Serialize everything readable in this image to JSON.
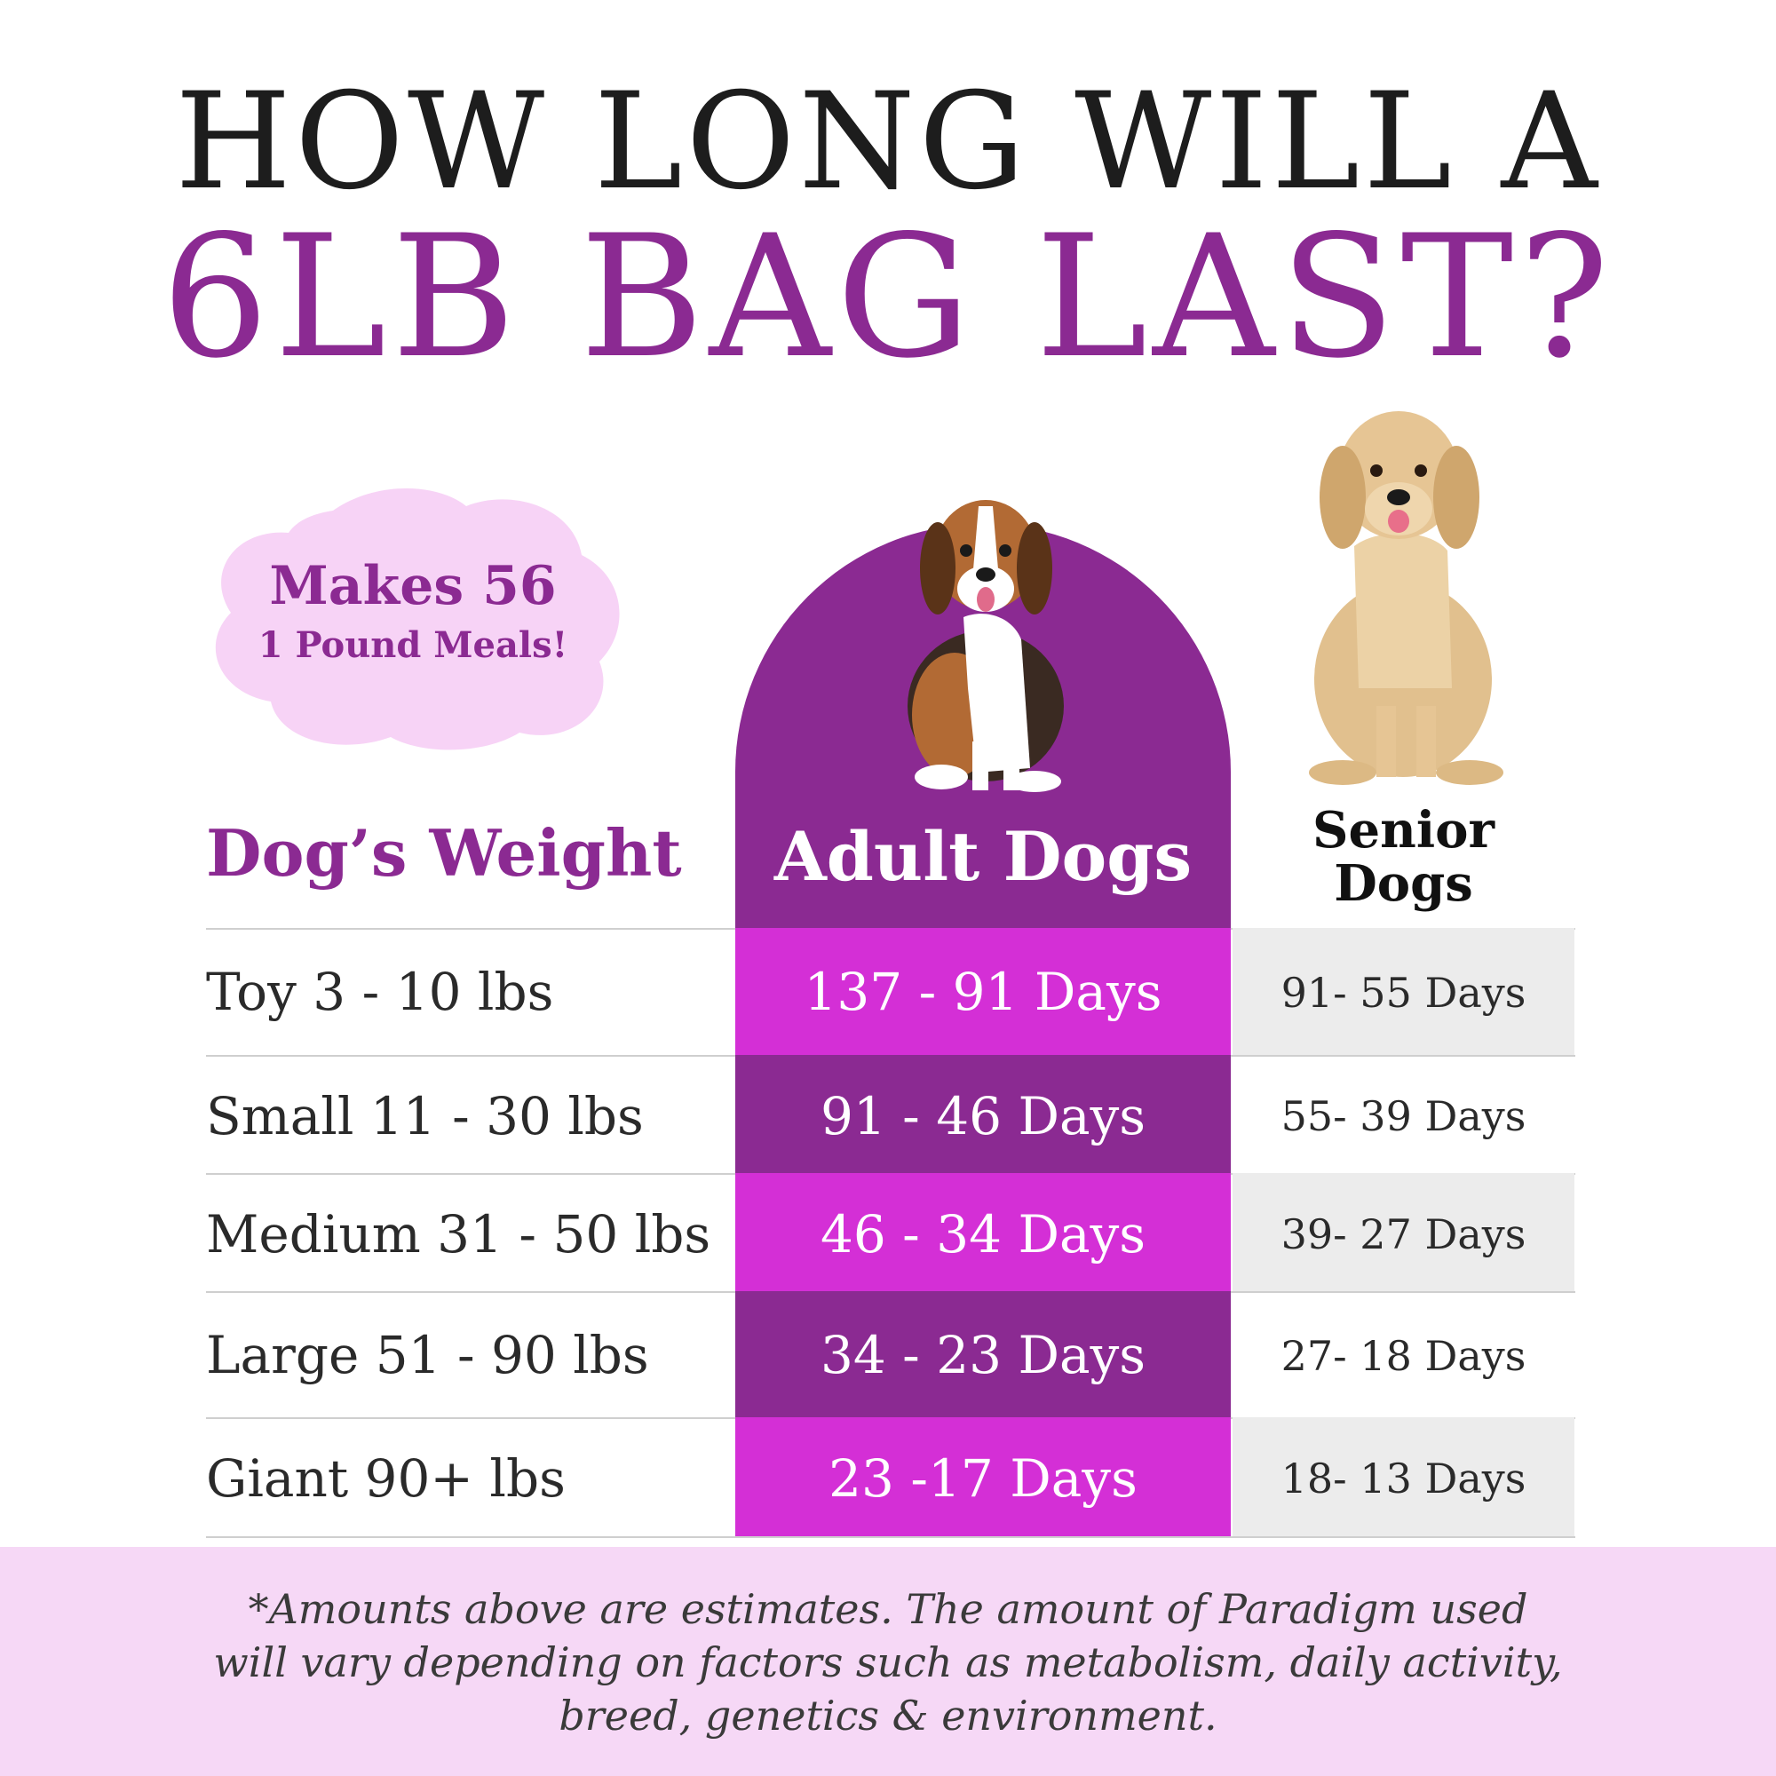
{
  "title": {
    "line1": "HOW LONG WILL A",
    "line2": "6LB BAG LAST?"
  },
  "badge": {
    "line1": "Makes 56",
    "line2": "1 Pound Meals!"
  },
  "headers": {
    "weight": "Dog’s Weight",
    "adult": "Adult Dogs",
    "senior_line1": "Senior",
    "senior_line2": "Dogs"
  },
  "rows": [
    {
      "weight": "Toy 3 - 10 lbs",
      "adult": "137 - 91 Days",
      "senior": "91- 55 Days"
    },
    {
      "weight": "Small 11 - 30 lbs",
      "adult": "91 - 46 Days",
      "senior": "55- 39 Days"
    },
    {
      "weight": "Medium 31 - 50 lbs",
      "adult": "46 - 34 Days",
      "senior": "39- 27 Days"
    },
    {
      "weight": "Large 51 - 90 lbs",
      "adult": "34 - 23 Days",
      "senior": "27- 18 Days"
    },
    {
      "weight": "Giant 90+ lbs",
      "adult": "23 -17 Days",
      "senior": "18- 13 Days"
    }
  ],
  "footer": {
    "line1": "*Amounts above are estimates. The amount of Paradigm used",
    "line2": "will vary depending on factors such as metabolism, daily activity,",
    "line3": "breed, genetics & environment."
  },
  "colors": {
    "purple": "#8b2a92",
    "magenta": "#d42fd6",
    "light_pink": "#f6d8f6",
    "senior_gray": "#ececec"
  }
}
